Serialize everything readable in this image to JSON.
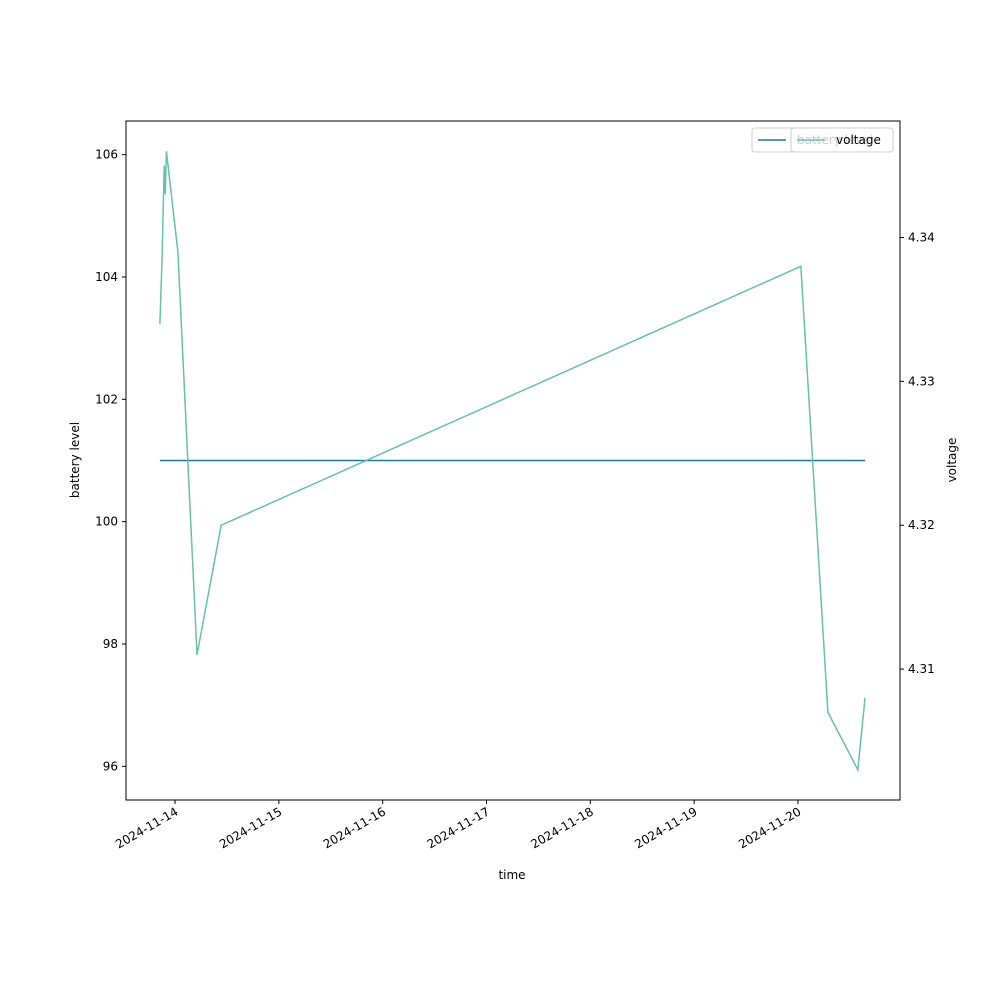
{
  "chart_data": {
    "type": "line",
    "x_label": "time",
    "y_label": "battery level",
    "y2_label": "voltage",
    "x": [
      "2024-11-13T20:30",
      "2024-11-13T21:00",
      "2024-11-13T21:30",
      "2024-11-13T21:45",
      "2024-11-13T22:00",
      "2024-11-14T00:40",
      "2024-11-14T05:05",
      "2024-11-14T10:40",
      "2024-11-20T00:40",
      "2024-11-20T06:55",
      "2024-11-20T13:50",
      "2024-11-20T15:30"
    ],
    "series": [
      {
        "name": "battery level",
        "color": "#1f77b4",
        "values": [
          101,
          101,
          101,
          101,
          101,
          101,
          101,
          101,
          101,
          101,
          101,
          101
        ]
      },
      {
        "name": "voltage",
        "color": "#66c2a5",
        "axis": "y2",
        "values": [
          4.334,
          4.3385,
          4.345,
          4.343,
          4.346,
          4.339,
          4.311,
          4.32,
          4.338,
          4.307,
          4.303,
          4.308
        ]
      }
    ],
    "xlim": [
      "2024-11-13T12:40",
      "2024-11-20T23:35"
    ],
    "xticks": [
      "2024-11-14",
      "2024-11-15",
      "2024-11-16",
      "2024-11-17",
      "2024-11-18",
      "2024-11-19",
      "2024-11-20"
    ],
    "ylim": [
      95.45,
      106.55
    ],
    "yticks": [
      96,
      98,
      100,
      102,
      104,
      106
    ],
    "y2lim": [
      4.3009,
      4.3481
    ],
    "y2ticks": [
      4.31,
      4.32,
      4.33,
      4.34
    ],
    "legend": "upper right"
  }
}
